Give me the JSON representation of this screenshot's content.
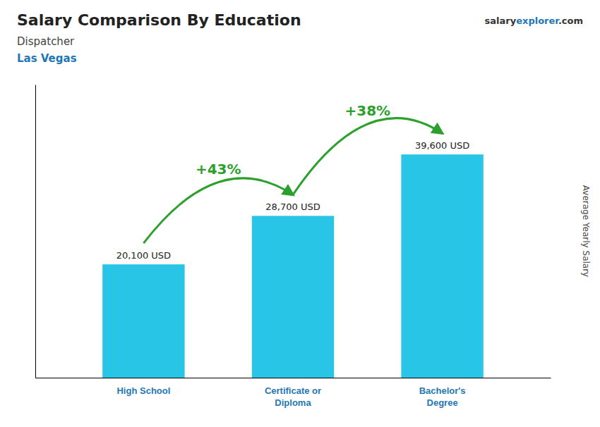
{
  "chart_data": {
    "type": "bar",
    "title": "Salary Comparison By Education",
    "subtitle": [
      "Dispatcher",
      "Las Vegas"
    ],
    "source": [
      "salary",
      "explorer",
      ".com"
    ],
    "y_label": "Average Yearly Salary",
    "categories": [
      "High School",
      "Certificate or\nDiploma",
      "Bachelor's\nDegree"
    ],
    "values": [
      20100,
      28700,
      39600
    ],
    "value_labels": [
      "20,100 USD",
      "28,700 USD",
      "39,600 USD"
    ],
    "data_labels": true,
    "annotations": [
      "+43%",
      "+38%"
    ],
    "color": "#29c5e6",
    "ylim": [
      0,
      52000
    ],
    "tick_labels": "x",
    "grid": false
  }
}
